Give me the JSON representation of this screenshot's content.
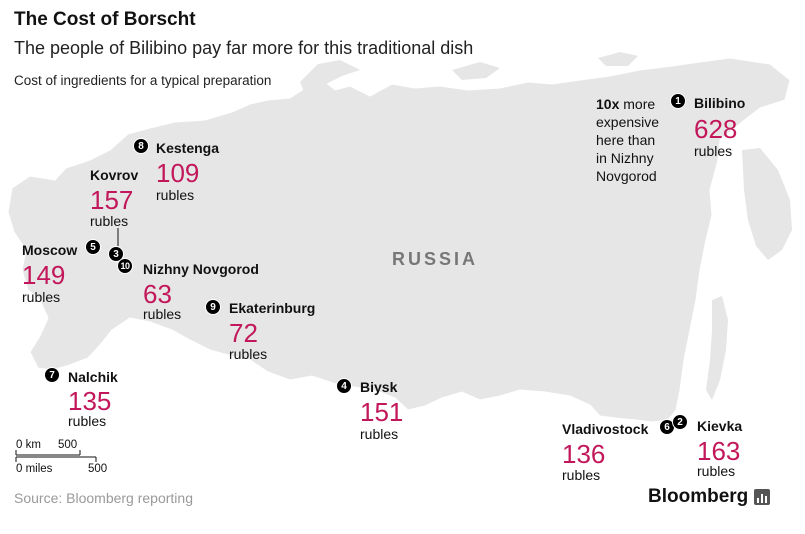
{
  "header": {
    "title": "The Cost of Borscht",
    "subtitle": "The people of Bilibino pay far more for this traditional dish",
    "caption": "Cost of ingredients for a typical preparation"
  },
  "map": {
    "country_label": "RUSSIA",
    "land_color": "#e6e6e6",
    "accent_color": "#c2185b"
  },
  "cities": [
    {
      "rank": "1",
      "name": "Bilibino",
      "price": "628",
      "unit": "rubles"
    },
    {
      "rank": "2",
      "name": "Kievka",
      "price": "163",
      "unit": "rubles"
    },
    {
      "rank": "3",
      "name": "",
      "price": "",
      "unit": ""
    },
    {
      "rank": "4",
      "name": "Biysk",
      "price": "151",
      "unit": "rubles"
    },
    {
      "rank": "5",
      "name": "Moscow",
      "price": "149",
      "unit": "rubles"
    },
    {
      "rank": "6",
      "name": "Vladivostock",
      "price": "136",
      "unit": "rubles"
    },
    {
      "rank": "7",
      "name": "Nalchik",
      "price": "135",
      "unit": "rubles"
    },
    {
      "rank": "8",
      "name": "Kestenga",
      "price": "109",
      "unit": "rubles"
    },
    {
      "rank": "9",
      "name": "Ekaterinburg",
      "price": "72",
      "unit": "rubles"
    },
    {
      "rank": "10",
      "name": "Nizhny Novgorod",
      "price": "63",
      "unit": "rubles"
    },
    {
      "rank": "3",
      "name": "Kovrov",
      "price": "157",
      "unit": "rubles"
    }
  ],
  "note": {
    "emphasis": "10x",
    "line1": "more",
    "line2": "expensive",
    "line3": "here than",
    "line4": "in Nizhny",
    "line5": "Novgorod"
  },
  "scale": {
    "km_zero": "0 km",
    "km_value": "500",
    "miles_zero": "0 miles",
    "miles_value": "500"
  },
  "footer": {
    "source": "Source: Bloomberg reporting",
    "brand": "Bloomberg"
  }
}
